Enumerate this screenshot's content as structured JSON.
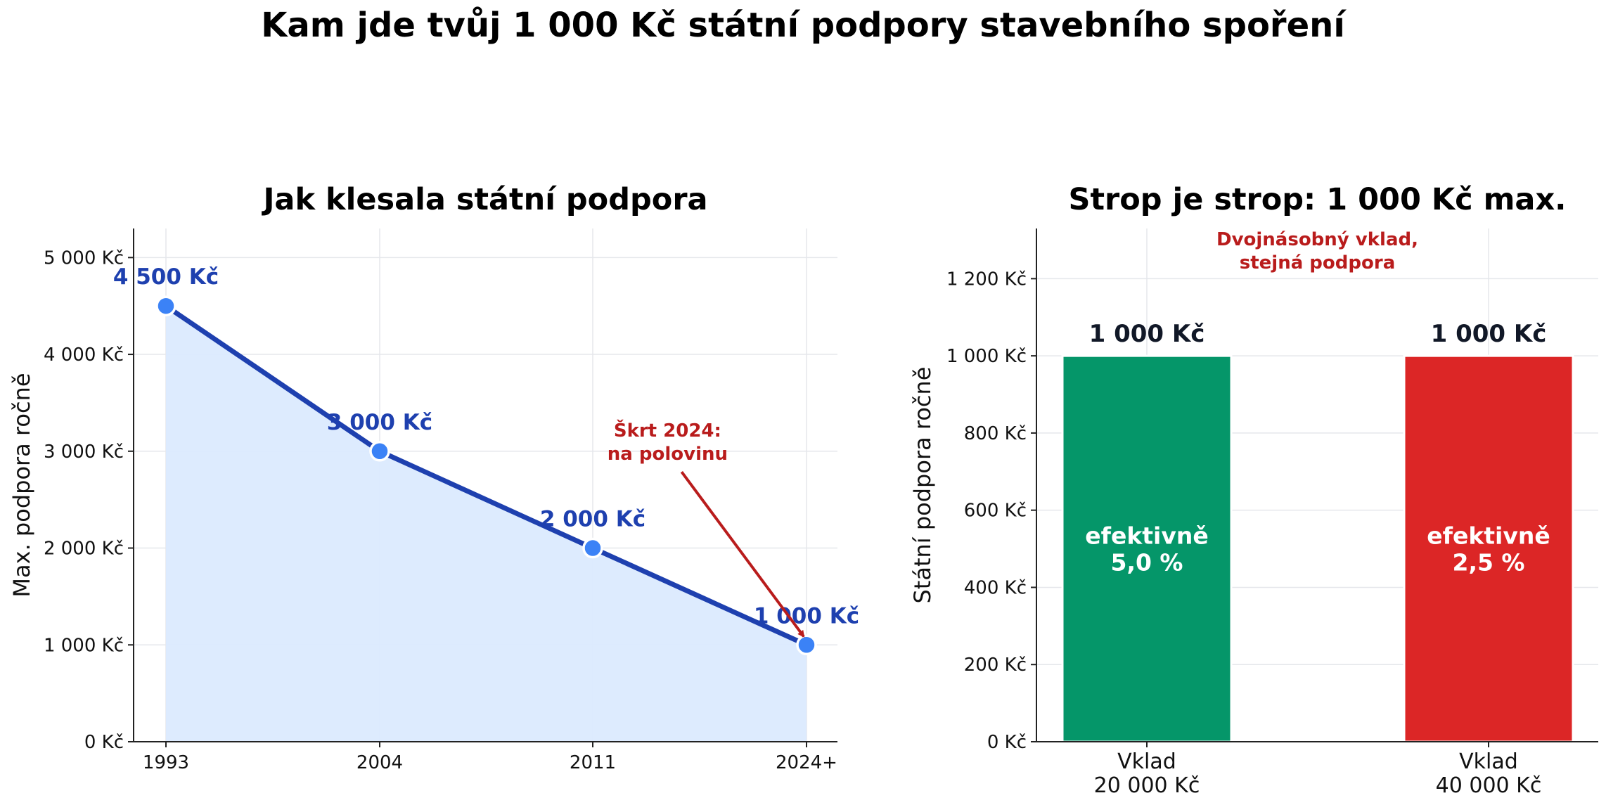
{
  "title": "Kam jde tvůj 1 000 Kč státní podpory stavebního spoření",
  "colors": {
    "line": "#1e40af",
    "marker": "#3b82f6",
    "area": "#dbeafe",
    "annotation": "#b91c1c",
    "bar_green": "#059669",
    "bar_red": "#dc2626",
    "grid": "#e5e7eb"
  },
  "chart_data": [
    {
      "type": "line",
      "title": "Jak klesala státní podpora",
      "ylabel": "Max. podpora ročně",
      "categories": [
        "1993",
        "2004",
        "2011",
        "2024+"
      ],
      "values": [
        4500,
        3000,
        2000,
        1000
      ],
      "point_labels": [
        "4 500 Kč",
        "3 000 Kč",
        "2 000 Kč",
        "1 000 Kč"
      ],
      "ylim": [
        0,
        5300
      ],
      "yticks": [
        0,
        1000,
        2000,
        3000,
        4000,
        5000
      ],
      "ytick_labels": [
        "0 Kč",
        "1 000 Kč",
        "2 000 Kč",
        "3 000 Kč",
        "4 000 Kč",
        "5 000 Kč"
      ],
      "area_fill": true,
      "grid": true,
      "annotation": {
        "lines": [
          "Škrt 2024:",
          "na polovinu"
        ],
        "target_index": 3,
        "text_x": 2.35,
        "text_y": 3150
      }
    },
    {
      "type": "bar",
      "title": "Strop je strop: 1 000 Kč max.",
      "ylabel": "Státní podpora ročně",
      "categories": [
        [
          "Vklad",
          "20 000 Kč"
        ],
        [
          "Vklad",
          "40 000 Kč"
        ]
      ],
      "values": [
        1000,
        1000
      ],
      "value_labels": [
        "1 000 Kč",
        "1 000 Kč"
      ],
      "inner_labels": [
        [
          "efektivně",
          "5,0 %"
        ],
        [
          "efektivně",
          "2,5 %"
        ]
      ],
      "bar_colors": [
        "#059669",
        "#dc2626"
      ],
      "ylim": [
        0,
        1330
      ],
      "yticks": [
        0,
        200,
        400,
        600,
        800,
        1000,
        1200
      ],
      "ytick_labels": [
        "0 Kč",
        "200 Kč",
        "400 Kč",
        "600 Kč",
        "800 Kč",
        "1 000 Kč",
        "1 200 Kč"
      ],
      "grid": true,
      "annotation": {
        "lines": [
          "Dvojnásobný vklad,",
          "stejná podpora"
        ]
      }
    }
  ]
}
